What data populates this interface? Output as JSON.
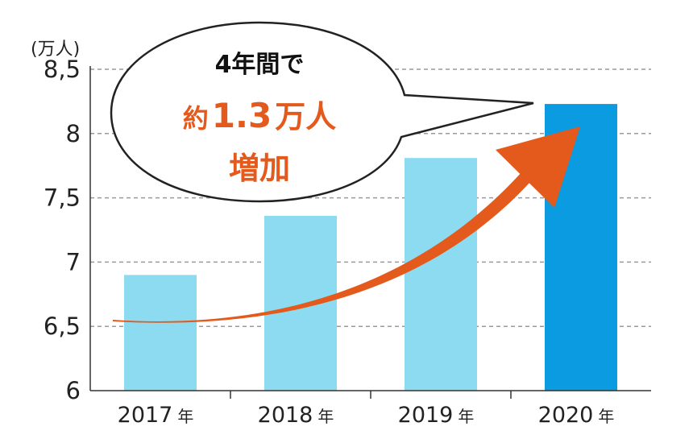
{
  "chart_data": {
    "type": "bar",
    "categories": [
      "2017",
      "2018",
      "2019",
      "2020"
    ],
    "category_suffix": "年",
    "values": [
      6.9,
      7.36,
      7.81,
      8.23
    ],
    "highlight_index": 3,
    "unit_label": "(万人)",
    "yticks": [
      "6",
      "6,5",
      "7",
      "7,5",
      "8",
      "8,5"
    ],
    "ylim": [
      6,
      8.5
    ],
    "grid": true,
    "colors": {
      "bar": "#8ddbf0",
      "highlight": "#0a9be1",
      "arrow": "#e45a1d",
      "grid": "#9a9a9a"
    },
    "annotation": {
      "line1": "4年間で",
      "line2_prefix": "約",
      "line2_value": "1.3",
      "line2_suffix": "万人",
      "line3": "増加"
    }
  }
}
